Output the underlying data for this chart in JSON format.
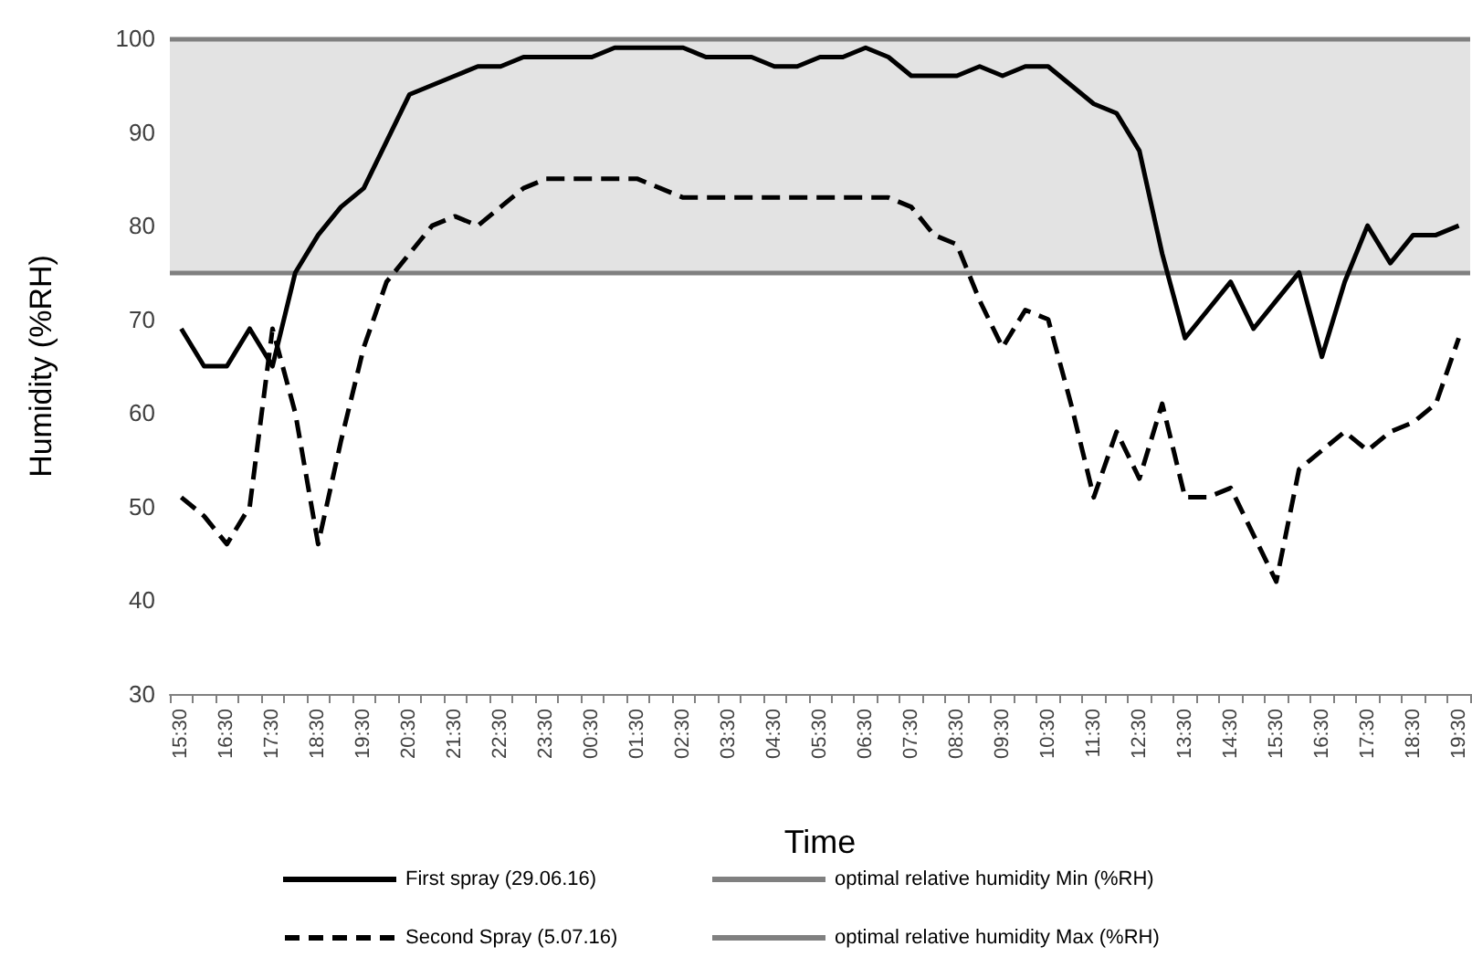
{
  "chart_data": {
    "type": "line",
    "xlabel": "Time",
    "ylabel": "Humidity (%RH)",
    "categories": [
      "15:30",
      null,
      "16:30",
      null,
      "17:30",
      null,
      "18:30",
      null,
      "19:30",
      null,
      "20:30",
      null,
      "21:30",
      null,
      "22:30",
      null,
      "23:30",
      null,
      "00:30",
      null,
      "01:30",
      null,
      "02:30",
      null,
      "03:30",
      null,
      "04:30",
      null,
      "05:30",
      null,
      "06:30",
      null,
      "07:30",
      null,
      "08:30",
      null,
      "09:30",
      null,
      "10:30",
      null,
      "11:30",
      null,
      "12:30",
      null,
      "13:30",
      null,
      "14:30",
      null,
      "15:30",
      null,
      "16:30",
      null,
      "17:30",
      null,
      "18:30",
      null,
      "19:30"
    ],
    "series": [
      {
        "name": "First spray (29.06.16)",
        "color": "#000000",
        "line_style": "solid",
        "values": [
          69,
          65,
          65,
          69,
          65,
          75,
          79,
          82,
          84,
          89,
          94,
          95,
          96,
          97,
          97,
          98,
          98,
          98,
          98,
          99,
          99,
          99,
          99,
          98,
          98,
          98,
          97,
          97,
          98,
          98,
          99,
          98,
          96,
          96,
          96,
          97,
          96,
          97,
          97,
          95,
          93,
          92,
          88,
          77,
          68,
          71,
          74,
          69,
          72,
          75,
          66,
          74,
          80,
          76,
          79,
          79,
          80
        ]
      },
      {
        "name": "Second Spray (5.07.16)",
        "color": "#000000",
        "line_style": "dashed",
        "values": [
          51,
          49,
          46,
          50,
          69,
          60,
          46,
          57,
          67,
          74,
          77,
          80,
          81,
          80,
          82,
          84,
          85,
          85,
          85,
          85,
          85,
          84,
          83,
          83,
          83,
          83,
          83,
          83,
          83,
          83,
          83,
          83,
          82,
          79,
          78,
          72,
          67,
          71,
          70,
          61,
          51,
          58,
          53,
          61,
          51,
          51,
          52,
          47,
          42,
          54,
          56,
          58,
          56,
          58,
          59,
          61,
          68
        ]
      }
    ],
    "ref_lines": [
      {
        "axis": "y",
        "value": 75,
        "label": "optimal relative humidity Min (%RH)",
        "color": "#808080"
      },
      {
        "axis": "y",
        "value": 100,
        "label": "optimal relative humidity Max (%RH)",
        "color": "#808080"
      }
    ],
    "bands": [
      {
        "axis": "y",
        "from": 75,
        "to": 100,
        "color": "#e3e3e3"
      }
    ],
    "ylim": [
      30,
      100
    ],
    "yticks": [
      30,
      40,
      50,
      60,
      70,
      80,
      90,
      100
    ],
    "grid": false,
    "legend": "bottom",
    "marker": "none"
  }
}
